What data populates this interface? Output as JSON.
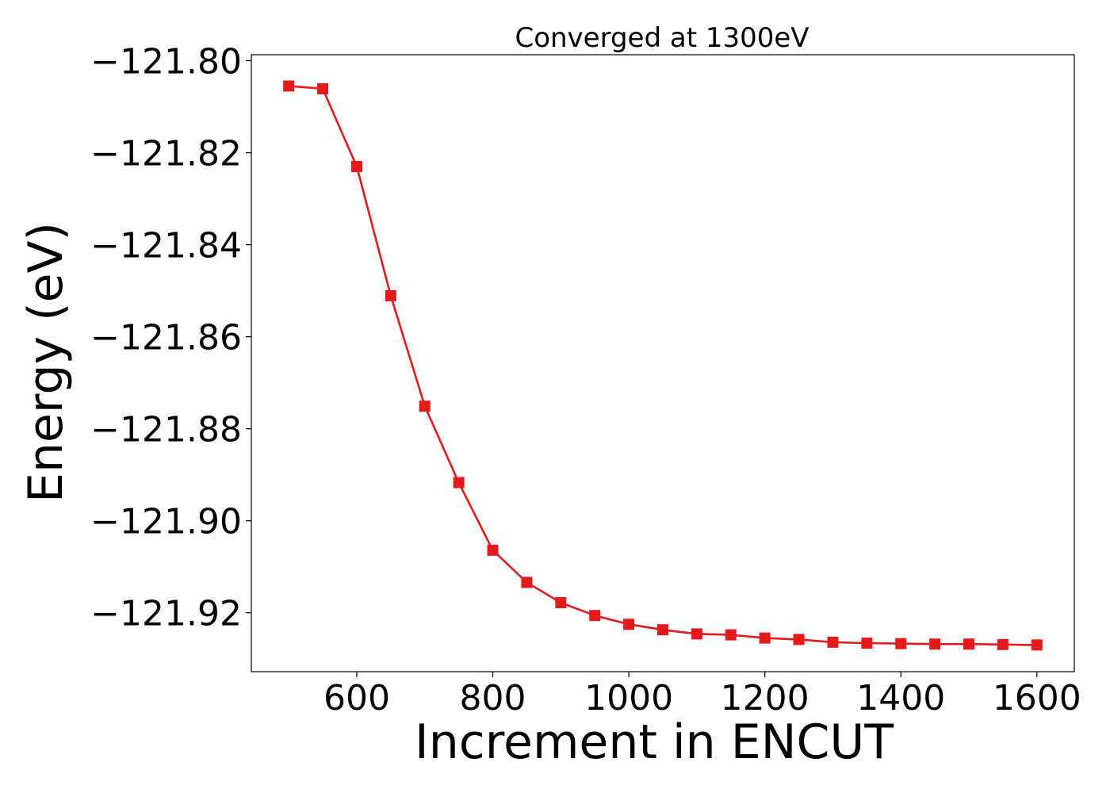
{
  "chart_data": {
    "type": "line",
    "title": "Converged at 1300eV",
    "xlabel": "Increment in ENCUT",
    "ylabel": "Energy (eV)",
    "xlim": [
      445,
      1655
    ],
    "ylim": [
      -121.9328,
      -121.7987
    ],
    "x_ticks": [
      600,
      800,
      1000,
      1200,
      1400,
      1600
    ],
    "x_tick_labels": [
      "600",
      "800",
      "1000",
      "1200",
      "1400",
      "1600"
    ],
    "y_ticks": [
      -121.8,
      -121.82,
      -121.84,
      -121.86,
      -121.88,
      -121.9,
      -121.92
    ],
    "y_tick_labels": [
      "−121.80",
      "−121.82",
      "−121.84",
      "−121.86",
      "−121.88",
      "−121.90",
      "−121.92"
    ],
    "grid": false,
    "legend": "none",
    "series": [
      {
        "color": "#e41a1c",
        "marker": "square",
        "x": [
          500,
          550,
          600,
          650,
          700,
          750,
          800,
          850,
          900,
          950,
          1000,
          1050,
          1100,
          1150,
          1200,
          1250,
          1300,
          1350,
          1400,
          1450,
          1500,
          1550,
          1600
        ],
        "y": [
          -121.8055,
          -121.8061,
          -121.823,
          -121.8511,
          -121.8751,
          -121.8917,
          -121.9064,
          -121.9134,
          -121.9178,
          -121.9206,
          -121.9225,
          -121.9237,
          -121.9246,
          -121.9248,
          -121.9255,
          -121.9258,
          -121.9264,
          -121.9266,
          -121.9267,
          -121.9268,
          -121.9268,
          -121.9269,
          -121.927
        ]
      }
    ]
  }
}
